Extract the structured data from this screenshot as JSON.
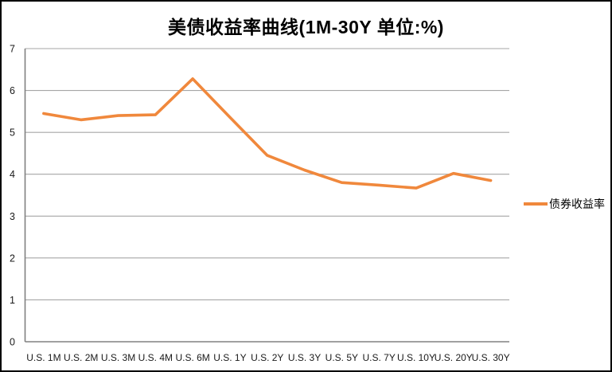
{
  "frame": {
    "background": "#ffffff",
    "border_color": "#000000"
  },
  "chart_data": {
    "type": "line",
    "title": "美债收益率曲线(1M-30Y 单位:%)",
    "categories": [
      "U.S. 1M",
      "U.S. 2M",
      "U.S. 3M",
      "U.S. 4M",
      "U.S. 6M",
      "U.S. 1Y",
      "U.S. 2Y",
      "U.S. 3Y",
      "U.S. 5Y",
      "U.S. 7Y",
      "U.S. 10Y",
      "U.S. 20Y",
      "U.S. 30Y"
    ],
    "series": [
      {
        "name": "债券收益率",
        "color": "#F0883C",
        "values": [
          5.45,
          5.3,
          5.4,
          5.42,
          6.28,
          5.36,
          4.45,
          4.1,
          3.8,
          3.74,
          3.67,
          4.02,
          3.85
        ]
      }
    ],
    "xlabel": "",
    "ylabel": "",
    "ylim": [
      0,
      7
    ],
    "yticks": [
      0,
      1,
      2,
      3,
      4,
      5,
      6,
      7
    ],
    "grid": true,
    "legend_position": "right",
    "colors": {
      "gridline": "#A6A6A6",
      "axis": "#808080",
      "tick_text": "#1a1a1a",
      "title_text": "#000000"
    }
  }
}
